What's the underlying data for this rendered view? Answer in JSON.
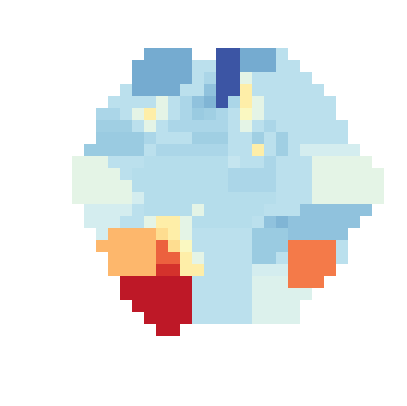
{
  "chart_data": {
    "type": "heatmap",
    "tick_labels": false,
    "zlim": [
      0,
      1
    ],
    "cells": [
      [
        null,
        null,
        null,
        null,
        null,
        null,
        0.2,
        0.2,
        0.2,
        0.2,
        null,
        null,
        0.05,
        0.05,
        0.2,
        0.2,
        0.2,
        0.33,
        null,
        null,
        null,
        null,
        null,
        null,
        null,
        null
      ],
      [
        null,
        null,
        null,
        null,
        null,
        0.2,
        0.2,
        0.2,
        0.2,
        0.2,
        0.33,
        0.33,
        0.05,
        0.05,
        0.2,
        0.2,
        0.2,
        0.33,
        0.33,
        null,
        null,
        null,
        null,
        null,
        null,
        null
      ],
      [
        null,
        null,
        null,
        null,
        null,
        0.2,
        0.2,
        0.2,
        0.2,
        0.2,
        0.33,
        0.3,
        0.05,
        0.05,
        0.42,
        0.33,
        0.33,
        0.33,
        0.33,
        0.33,
        null,
        null,
        null,
        null,
        null,
        null
      ],
      [
        null,
        null,
        null,
        null,
        0.33,
        0.2,
        0.2,
        0.2,
        0.2,
        0.33,
        0.33,
        0.25,
        0.05,
        0.05,
        0.55,
        0.33,
        0.33,
        0.33,
        0.33,
        0.33,
        0.33,
        null,
        null,
        null,
        null,
        null
      ],
      [
        null,
        null,
        null,
        0.33,
        0.33,
        0.33,
        0.33,
        0.42,
        0.33,
        0.3,
        0.25,
        0.22,
        0.05,
        0.3,
        0.55,
        0.42,
        0.33,
        0.33,
        0.33,
        0.33,
        0.33,
        0.33,
        null,
        null,
        null,
        null
      ],
      [
        null,
        null,
        0.3,
        0.3,
        0.33,
        0.42,
        0.55,
        0.42,
        0.33,
        0.3,
        0.27,
        0.28,
        0.3,
        0.33,
        0.5,
        0.42,
        0.33,
        0.33,
        0.33,
        0.33,
        0.33,
        0.33,
        null,
        null,
        null,
        null
      ],
      [
        null,
        null,
        0.28,
        0.28,
        0.28,
        0.33,
        0.42,
        0.33,
        0.3,
        0.3,
        0.3,
        0.3,
        0.3,
        0.33,
        0.42,
        0.33,
        0.3,
        0.33,
        0.33,
        0.33,
        0.33,
        0.33,
        0.33,
        null,
        null,
        null
      ],
      [
        null,
        null,
        0.27,
        0.27,
        0.27,
        0.27,
        0.3,
        0.33,
        0.33,
        0.33,
        0.28,
        0.28,
        0.28,
        0.33,
        0.33,
        0.28,
        0.33,
        0.28,
        0.33,
        0.33,
        0.33,
        0.33,
        0.33,
        null,
        null,
        null
      ],
      [
        null,
        0.27,
        0.27,
        0.27,
        0.27,
        0.27,
        0.33,
        0.3,
        0.3,
        0.3,
        0.3,
        0.3,
        0.3,
        0.33,
        0.33,
        0.55,
        0.33,
        0.28,
        0.33,
        0.38,
        0.38,
        0.38,
        0.38,
        0.38,
        null,
        null
      ],
      [
        0.42,
        0.42,
        0.42,
        0.33,
        0.33,
        0.33,
        0.32,
        0.32,
        0.32,
        0.32,
        0.32,
        0.32,
        0.32,
        0.35,
        0.33,
        0.33,
        0.3,
        0.33,
        0.33,
        0.33,
        0.42,
        0.42,
        0.42,
        0.42,
        0.42,
        null
      ],
      [
        0.42,
        0.42,
        0.42,
        0.42,
        0.33,
        0.32,
        0.32,
        0.32,
        0.32,
        0.32,
        0.32,
        0.32,
        0.32,
        0.3,
        0.3,
        0.3,
        0.3,
        0.33,
        0.33,
        0.33,
        0.42,
        0.42,
        0.42,
        0.42,
        0.42,
        0.42
      ],
      [
        0.42,
        0.42,
        0.42,
        0.42,
        0.42,
        0.32,
        0.32,
        0.32,
        0.32,
        0.32,
        0.32,
        0.32,
        0.32,
        0.3,
        0.3,
        0.3,
        0.3,
        0.33,
        0.33,
        0.33,
        0.42,
        0.42,
        0.42,
        0.42,
        0.42,
        0.42
      ],
      [
        0.42,
        0.42,
        0.42,
        0.42,
        0.42,
        0.38,
        0.32,
        0.32,
        0.32,
        0.32,
        0.32,
        0.32,
        0.32,
        0.32,
        0.32,
        0.32,
        0.32,
        0.33,
        0.33,
        0.33,
        0.42,
        0.42,
        0.42,
        0.42,
        0.42,
        0.42
      ],
      [
        null,
        0.38,
        0.38,
        0.38,
        0.38,
        0.33,
        0.32,
        0.32,
        0.32,
        0.32,
        0.42,
        0.32,
        0.32,
        0.32,
        0.32,
        0.32,
        0.33,
        0.33,
        0.33,
        0.25,
        0.25,
        0.25,
        0.25,
        0.25,
        0.25,
        null
      ],
      [
        null,
        0.38,
        0.38,
        0.38,
        0.33,
        0.33,
        0.42,
        0.55,
        0.55,
        0.42,
        0.32,
        0.32,
        0.32,
        0.32,
        0.32,
        0.33,
        0.25,
        0.22,
        0.25,
        0.25,
        0.25,
        0.25,
        0.25,
        0.25,
        null,
        null
      ],
      [
        null,
        null,
        0.38,
        0.68,
        0.68,
        0.68,
        0.68,
        0.6,
        0.55,
        0.42,
        0.33,
        0.33,
        0.33,
        0.33,
        0.33,
        0.27,
        0.27,
        0.27,
        0.25,
        0.25,
        0.25,
        0.25,
        0.25,
        null,
        null,
        null
      ],
      [
        null,
        null,
        0.68,
        0.68,
        0.68,
        0.68,
        0.68,
        0.82,
        0.6,
        0.5,
        0.33,
        0.33,
        0.33,
        0.33,
        0.33,
        0.27,
        0.27,
        0.27,
        0.78,
        0.78,
        0.78,
        0.78,
        0.33,
        null,
        null,
        null
      ],
      [
        null,
        null,
        null,
        0.68,
        0.68,
        0.68,
        0.68,
        0.82,
        0.82,
        0.55,
        0.42,
        0.33,
        0.33,
        0.33,
        0.33,
        0.27,
        0.27,
        0.33,
        0.78,
        0.78,
        0.78,
        0.78,
        0.33,
        null,
        null,
        null
      ],
      [
        null,
        null,
        null,
        0.68,
        0.68,
        0.68,
        0.68,
        0.9,
        0.9,
        0.55,
        0.55,
        0.33,
        0.33,
        0.33,
        0.33,
        0.38,
        0.38,
        0.38,
        0.78,
        0.78,
        0.78,
        0.78,
        null,
        null,
        null,
        null
      ],
      [
        null,
        null,
        null,
        null,
        0.95,
        0.95,
        0.95,
        0.95,
        0.95,
        0.95,
        0.33,
        0.33,
        0.33,
        0.33,
        0.33,
        0.4,
        0.4,
        0.4,
        0.78,
        0.78,
        0.78,
        null,
        null,
        null,
        null,
        null
      ],
      [
        null,
        null,
        null,
        null,
        0.95,
        0.95,
        0.95,
        0.95,
        0.95,
        0.95,
        0.33,
        0.33,
        0.33,
        0.33,
        0.33,
        0.4,
        0.4,
        0.4,
        0.4,
        0.4,
        null,
        null,
        null,
        null,
        null,
        null
      ],
      [
        null,
        null,
        null,
        null,
        null,
        0.95,
        0.95,
        0.95,
        0.95,
        0.95,
        0.33,
        0.33,
        0.33,
        0.33,
        0.33,
        0.4,
        0.4,
        0.4,
        0.4,
        null,
        null,
        null,
        null,
        null,
        null,
        null
      ],
      [
        null,
        null,
        null,
        null,
        null,
        null,
        0.95,
        0.95,
        0.95,
        0.95,
        0.33,
        0.33,
        0.33,
        0.33,
        0.33,
        0.4,
        0.4,
        0.4,
        0.4,
        null,
        null,
        null,
        null,
        null,
        null,
        null
      ],
      [
        null,
        null,
        null,
        null,
        null,
        null,
        null,
        0.95,
        0.95,
        null,
        null,
        null,
        null,
        null,
        null,
        null,
        null,
        null,
        null,
        null,
        null,
        null,
        null,
        null,
        null,
        null
      ]
    ]
  }
}
